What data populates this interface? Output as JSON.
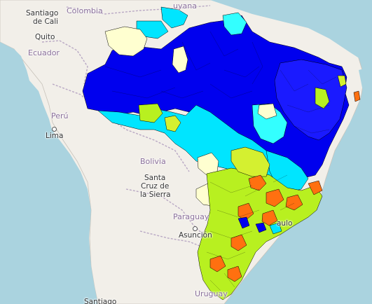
{
  "colors": {
    "ocean": "#aad3df",
    "land": "#f2efe9",
    "border": "#b9a8c4",
    "class_dark_blue": "#0000ee",
    "class_blue": "#1a1aff",
    "class_cyan": "#00e5ff",
    "class_light_cyan": "#33ffff",
    "class_lime": "#b8f020",
    "class_yellow_green": "#d4f030",
    "class_orange": "#ff7010",
    "class_pale_yellow": "#ffffd0"
  },
  "labels": {
    "colombia": "Colombia",
    "venezuela": "uyana",
    "santiago": "Santiago",
    "de_cali": "de Cali",
    "quito": "Quito",
    "ecuador": "Ecuador",
    "peru": "Perú",
    "lima": "Lima",
    "bolivia": "Bolivia",
    "santa": "Santa",
    "cruz_de": "Cruz de",
    "la_sierra": "la Sierra",
    "paraguay": "Paraguay",
    "asuncion": "Asunción",
    "uruguay": "Uruguay",
    "sao_paulo": "aulo",
    "santiago_bottom": "Santiago"
  }
}
